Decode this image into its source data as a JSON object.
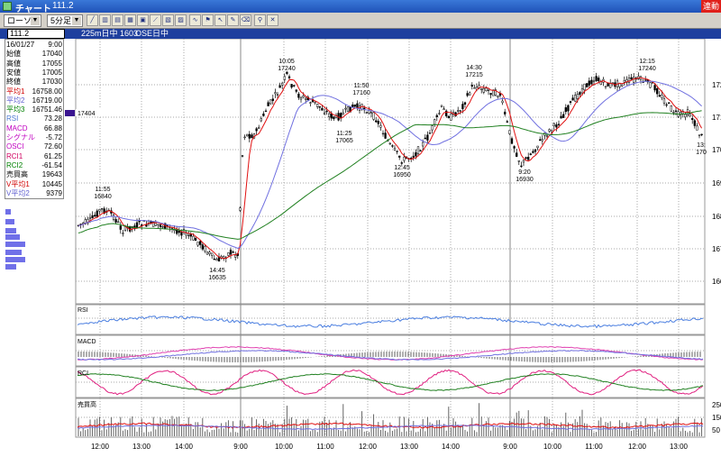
{
  "window": {
    "title": "チャート",
    "symbol_code": "111.2",
    "status_badge": "連動"
  },
  "toolbar": {
    "view_select": "ローソク",
    "interval_select": "5分足",
    "icons": [
      "line-chart-icon",
      "bar-chart-icon",
      "candle-chart-icon",
      "point-figure-icon",
      "compare-icon",
      "trend-line-icon",
      "pen-icon",
      "zoom-icon",
      "search-icon",
      "delete-icon"
    ]
  },
  "symbol_bar": {
    "input_value": "111.2",
    "label_left": "225m日中 1603",
    "label_right": "OSE日中"
  },
  "info": [
    {
      "label": "16/01/27",
      "value": "9:00",
      "color": "#000000"
    },
    {
      "label": "始値",
      "value": "17040",
      "color": "#000000"
    },
    {
      "label": "高値",
      "value": "17055",
      "color": "#000000"
    },
    {
      "label": "安値",
      "value": "17005",
      "color": "#000000"
    },
    {
      "label": "終値",
      "value": "17030",
      "color": "#000000"
    },
    {
      "label": "平均1",
      "value": "16758.00",
      "color": "#d00000"
    },
    {
      "label": "平均2",
      "value": "16719.00",
      "color": "#6060d0"
    },
    {
      "label": "平均3",
      "value": "16751.46",
      "color": "#008000"
    },
    {
      "label": "RSI",
      "value": "73.28",
      "color": "#4a78d0"
    },
    {
      "label": "MACD",
      "value": "66.88",
      "color": "#c000c0"
    },
    {
      "label": "シグナル",
      "value": "-5.72",
      "color": "#c000c0"
    },
    {
      "label": "OSCI",
      "value": "72.60",
      "color": "#c000c0"
    },
    {
      "label": "RCI1",
      "value": "61.25",
      "color": "#d00060"
    },
    {
      "label": "RCI2",
      "value": "-61.54",
      "color": "#008000"
    },
    {
      "label": "売買高",
      "value": "19643",
      "color": "#000000"
    },
    {
      "label": "V平均1",
      "value": "10445",
      "color": "#d00000"
    },
    {
      "label": "V平均2",
      "value": "9379",
      "color": "#6060d0"
    }
  ],
  "price_tag": "17404",
  "annotations": [
    {
      "time": "11:55",
      "price": "16840"
    },
    {
      "time": "14:45",
      "price": "16635"
    },
    {
      "time": "10:05",
      "price": "17240"
    },
    {
      "time": "11:50",
      "price": "17160"
    },
    {
      "time": "11:25",
      "price": "17065"
    },
    {
      "time": "12:45",
      "price": "16950"
    },
    {
      "time": "14:30",
      "price": "17215"
    },
    {
      "time": "9:20",
      "price": "16930"
    },
    {
      "time": "12:15",
      "price": "17240"
    },
    {
      "time": "13:",
      "price": "170"
    }
  ],
  "panels": {
    "rsi": "RSI",
    "macd": "MACD",
    "rci": "RCI",
    "volume": "売買高",
    "volume_scale": [
      "250",
      "150",
      "50"
    ]
  },
  "y_axis_labels": [
    "172",
    "171",
    "170",
    "169",
    "168",
    "167",
    "166"
  ],
  "x_axis_labels": [
    "12:00",
    "13:00",
    "14:00",
    "9:00",
    "10:00",
    "11:00",
    "12:00",
    "13:00",
    "14:00",
    "9:00",
    "10:00",
    "11:00",
    "12:00",
    "13:00"
  ],
  "colors": {
    "ma1": "#e01010",
    "ma2": "#7070e0",
    "ma3": "#208020",
    "rsi": "#4a7ee0",
    "macd": "#e040b0",
    "signal": "#404040",
    "rci1": "#e02080",
    "rci2": "#208020",
    "grid": "#a8a8a8",
    "title_bar": "#2a62c8"
  }
}
